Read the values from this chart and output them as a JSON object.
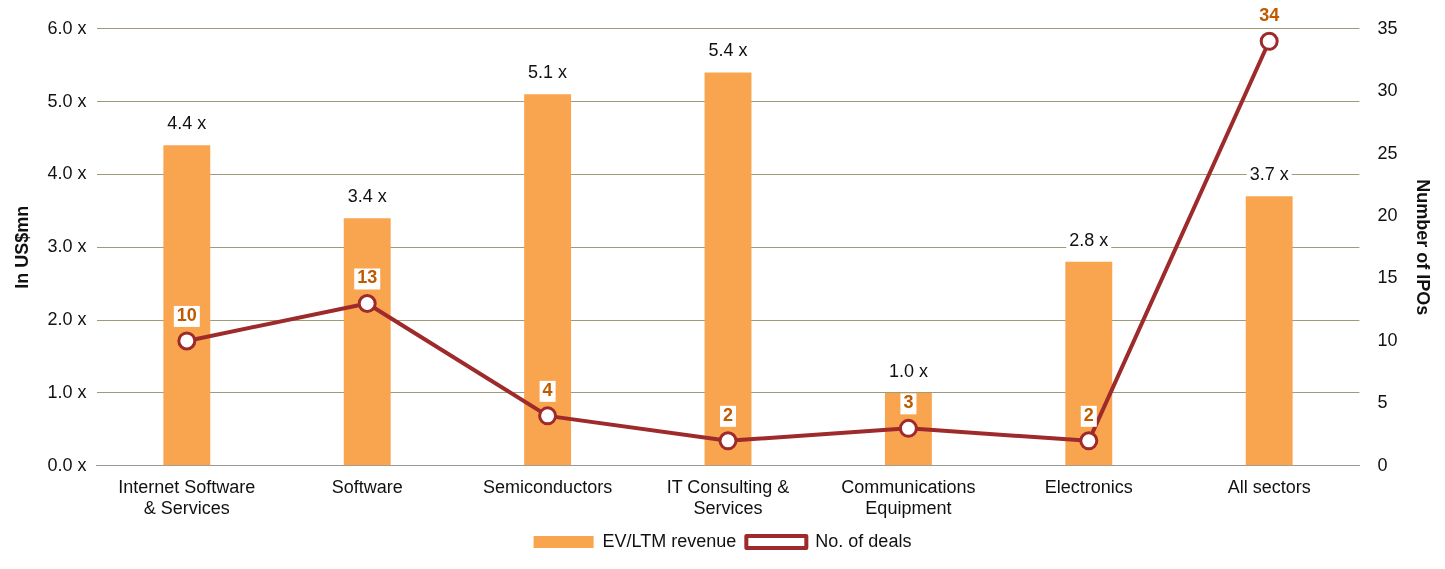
{
  "chart_data": {
    "type": "bar",
    "ylabel": "In US$mn",
    "y2label": "Number of IPOs",
    "categories": [
      "Internet Software & Services",
      "Software",
      "Semiconductors",
      "IT Consulting & Services",
      "Communications Equipment",
      "Electronics",
      "All sectors"
    ],
    "series": [
      {
        "name": "EV/LTM revenue",
        "color": "#f9a54f",
        "values": [
          4.4,
          3.4,
          5.1,
          5.4,
          1.0,
          2.8,
          3.7
        ],
        "value_labels": [
          "4.4 x",
          "3.4 x",
          "5.1 x",
          "5.4 x",
          "1.0 x",
          "2.8 x",
          "3.7 x"
        ]
      },
      {
        "name": "No. of deals",
        "type": "line",
        "axis": "y2",
        "color": "#9e2a2b",
        "marker": "circle",
        "values": [
          10,
          13,
          4,
          2,
          3,
          2,
          34
        ],
        "data_labels": true
      }
    ],
    "ylim": [
      0,
      6
    ],
    "yticks": [
      {
        "value": 0,
        "label": "0.0 x"
      },
      {
        "value": 1,
        "label": "1.0 x"
      },
      {
        "value": 2,
        "label": "2.0 x"
      },
      {
        "value": 3,
        "label": "3.0 x"
      },
      {
        "value": 4,
        "label": "4.0 x"
      },
      {
        "value": 5,
        "label": "5.0 x"
      },
      {
        "value": 6,
        "label": "6.0 x"
      }
    ],
    "y2lim": [
      0,
      35
    ],
    "y2ticks": [
      0,
      5,
      10,
      15,
      20,
      25,
      30,
      35
    ],
    "grid": "y",
    "legend": "bottom"
  }
}
